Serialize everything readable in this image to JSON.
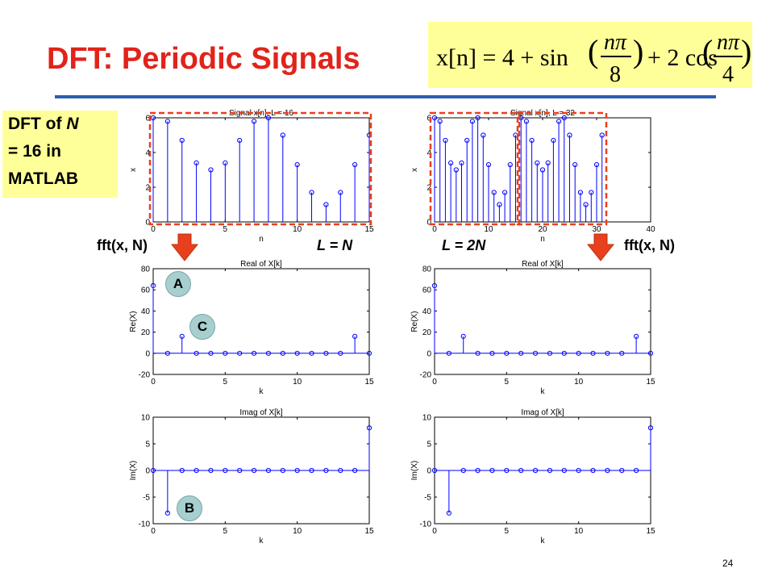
{
  "title": "DFT: Periodic Signals",
  "formula": {
    "lhs": "x[n] = 4 + sin",
    "f1_num": "nπ",
    "f1_den": "8",
    "mid": "+ 2 cos",
    "f2_num": "nπ",
    "f2_den": "4"
  },
  "note": {
    "line1_a": "DFT of ",
    "line1_b": "N",
    "line2": "= 16 in",
    "line3": "MATLAB"
  },
  "labels": {
    "fft_left": "fft(x, N)",
    "fft_right": "fft(x, N)",
    "l_eq_n": "L = N",
    "l_eq_2n": "L = 2N"
  },
  "badges": {
    "a": "A",
    "b": "B",
    "c": "C"
  },
  "page_number": "24",
  "colors": {
    "stem": "#0000ff",
    "frame": "#e8401c",
    "title": "#e2231a",
    "rule": "#2b5fb0",
    "highlight": "#ffff99",
    "badge": "#a7cfcf"
  },
  "chart_data": [
    {
      "type": "stem",
      "title": "Signal x[n], L = 16",
      "xlabel": "n",
      "ylabel": "x",
      "xlim": [
        0,
        15
      ],
      "ylim": [
        0,
        6
      ],
      "xticks": [
        0,
        5,
        10,
        15
      ],
      "yticks": [
        0,
        2,
        4,
        6
      ],
      "x": [
        0,
        1,
        2,
        3,
        4,
        5,
        6,
        7,
        8,
        9,
        10,
        11,
        12,
        13,
        14,
        15
      ],
      "values": [
        6,
        5.8,
        4.7,
        3.4,
        3.0,
        3.4,
        4.7,
        5.8,
        6,
        5,
        3.3,
        1.7,
        1.0,
        1.7,
        3.3,
        5
      ]
    },
    {
      "type": "stem",
      "title": "Signal x[n], L = 32",
      "xlabel": "n",
      "ylabel": "x",
      "xlim": [
        0,
        40
      ],
      "ylim": [
        0,
        6
      ],
      "xticks": [
        0,
        10,
        20,
        30,
        40
      ],
      "yticks": [
        0,
        2,
        4,
        6
      ],
      "x": [
        0,
        1,
        2,
        3,
        4,
        5,
        6,
        7,
        8,
        9,
        10,
        11,
        12,
        13,
        14,
        15,
        16,
        17,
        18,
        19,
        20,
        21,
        22,
        23,
        24,
        25,
        26,
        27,
        28,
        29,
        30,
        31
      ],
      "values": [
        6,
        5.8,
        4.7,
        3.4,
        3.0,
        3.4,
        4.7,
        5.8,
        6,
        5,
        3.3,
        1.7,
        1.0,
        1.7,
        3.3,
        5,
        6,
        5.8,
        4.7,
        3.4,
        3.0,
        3.4,
        4.7,
        5.8,
        6,
        5,
        3.3,
        1.7,
        1.0,
        1.7,
        3.3,
        5
      ]
    },
    {
      "type": "stem",
      "title": "Real of X[k]",
      "xlabel": "k",
      "ylabel": "Re(X)",
      "xlim": [
        0,
        15
      ],
      "ylim": [
        -20,
        80
      ],
      "xticks": [
        0,
        5,
        10,
        15
      ],
      "yticks": [
        -20,
        0,
        20,
        40,
        60,
        80
      ],
      "x": [
        0,
        1,
        2,
        3,
        4,
        5,
        6,
        7,
        8,
        9,
        10,
        11,
        12,
        13,
        14,
        15
      ],
      "values": [
        64,
        0,
        16,
        0,
        0,
        0,
        0,
        0,
        0,
        0,
        0,
        0,
        0,
        0,
        16,
        0
      ]
    },
    {
      "type": "stem",
      "title": "Real of X[k]",
      "xlabel": "k",
      "ylabel": "Re(X)",
      "xlim": [
        0,
        15
      ],
      "ylim": [
        -20,
        80
      ],
      "xticks": [
        0,
        5,
        10,
        15
      ],
      "yticks": [
        -20,
        0,
        20,
        40,
        60,
        80
      ],
      "x": [
        0,
        1,
        2,
        3,
        4,
        5,
        6,
        7,
        8,
        9,
        10,
        11,
        12,
        13,
        14,
        15
      ],
      "values": [
        64,
        0,
        16,
        0,
        0,
        0,
        0,
        0,
        0,
        0,
        0,
        0,
        0,
        0,
        16,
        0
      ]
    },
    {
      "type": "stem",
      "title": "Imag of X[k]",
      "xlabel": "k",
      "ylabel": "Im(X)",
      "xlim": [
        0,
        15
      ],
      "ylim": [
        -10,
        10
      ],
      "xticks": [
        0,
        5,
        10,
        15
      ],
      "yticks": [
        -10,
        -5,
        0,
        5,
        10
      ],
      "x": [
        0,
        1,
        2,
        3,
        4,
        5,
        6,
        7,
        8,
        9,
        10,
        11,
        12,
        13,
        14,
        15
      ],
      "values": [
        0,
        -8,
        0,
        0,
        0,
        0,
        0,
        0,
        0,
        0,
        0,
        0,
        0,
        0,
        0,
        8
      ]
    },
    {
      "type": "stem",
      "title": "Imag of X[k]",
      "xlabel": "k",
      "ylabel": "Im(X)",
      "xlim": [
        0,
        15
      ],
      "ylim": [
        -10,
        10
      ],
      "xticks": [
        0,
        5,
        10,
        15
      ],
      "yticks": [
        -10,
        -5,
        0,
        5,
        10
      ],
      "x": [
        0,
        1,
        2,
        3,
        4,
        5,
        6,
        7,
        8,
        9,
        10,
        11,
        12,
        13,
        14,
        15
      ],
      "values": [
        0,
        -8,
        0,
        0,
        0,
        0,
        0,
        0,
        0,
        0,
        0,
        0,
        0,
        0,
        0,
        8
      ]
    }
  ]
}
